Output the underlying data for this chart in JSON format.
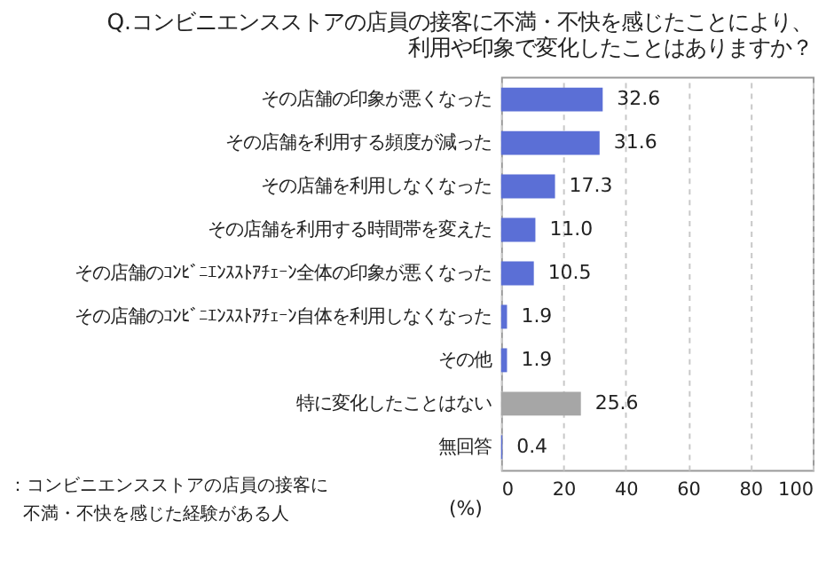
{
  "chart_data": {
    "type": "bar",
    "orientation": "horizontal",
    "title": [
      "Q.コンビニエンスストアの店員の接客に不満・不快を感じたことにより、",
      "利用や印象で変化したことはありますか？"
    ],
    "categories": [
      "その店舗の印象が悪くなった",
      "その店舗を利用する頻度が減った",
      "その店舗を利用しなくなった",
      "その店舗を利用する時間帯を変えた",
      "その店舗のｺﾝﾋﾞﾆｴﾝｽｽﾄｱﾁｪｰﾝ全体の印象が悪くなった",
      "その店舗のｺﾝﾋﾞﾆｴﾝｽｽﾄｱﾁｪｰﾝ自体を利用しなくなった",
      "その他",
      "特に変化したことはない",
      "無回答"
    ],
    "values": [
      32.6,
      31.6,
      17.3,
      11.0,
      10.5,
      1.9,
      1.9,
      25.6,
      0.4
    ],
    "value_labels": [
      "32.6",
      "31.6",
      "17.3",
      "11.0",
      "10.5",
      "1.9",
      "1.9",
      "25.6",
      "0.4"
    ],
    "colors": [
      "#5b6fd6",
      "#5b6fd6",
      "#5b6fd6",
      "#5b6fd6",
      "#5b6fd6",
      "#5b6fd6",
      "#5b6fd6",
      "#a6a6a6",
      "#5b6fd6"
    ],
    "xlim": [
      0,
      100
    ],
    "xticks": [
      0,
      20,
      40,
      60,
      80,
      100
    ],
    "xlabel": "(%)",
    "grid": "x",
    "annotations": [
      "：コンビニエンスストアの店員の接客に",
      "不満・不快を感じた経験がある人"
    ]
  }
}
